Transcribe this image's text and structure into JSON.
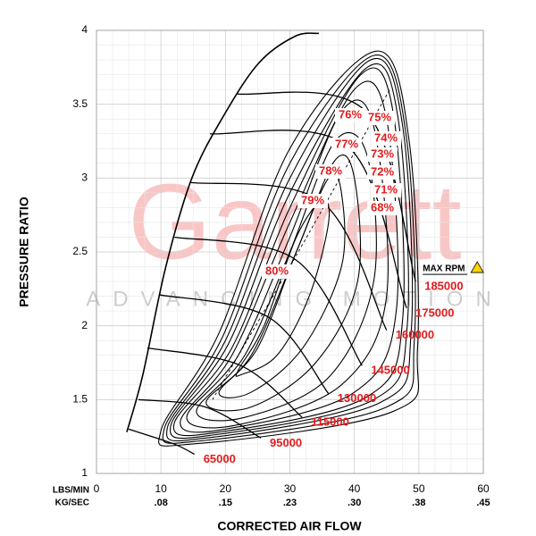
{
  "chart_data": {
    "type": "compressor-map",
    "xlabel": "CORRECTED AIR FLOW",
    "ylabel": "PRESSURE RATIO",
    "x_unit": "LBS/MIN",
    "x2_unit": "KG/SEC",
    "xlim": [
      0,
      60
    ],
    "xticks": [
      0,
      10,
      20,
      30,
      40,
      50,
      60
    ],
    "x2_labels": [
      ".08",
      ".15",
      ".23",
      ".30",
      ".38",
      ".45"
    ],
    "ylim": [
      1,
      4
    ],
    "yticks": [
      1,
      1.5,
      2,
      2.5,
      3,
      3.5,
      4
    ],
    "grid": true,
    "watermark": "Garrett",
    "watermark_sub": "ADVANCING MOTION",
    "max_rpm_label": "MAX RPM",
    "line_color": "#000000",
    "label_color": "#e41a1c",
    "surge_line": {
      "x": [
        4.7,
        7.2,
        10.7,
        14.8,
        19.7,
        25.2,
        30.8,
        34.5
      ],
      "values": [
        1.28,
        1.67,
        2.39,
        3.0,
        3.42,
        3.78,
        3.96,
        3.98
      ]
    },
    "speed_lines": [
      {
        "name": "65000",
        "x": [
          5,
          12,
          15.2
        ],
        "values": [
          1.3,
          1.2,
          1.13
        ]
      },
      {
        "name": "95000",
        "x": [
          6.5,
          16.9,
          25.5
        ],
        "values": [
          1.5,
          1.45,
          1.24
        ]
      },
      {
        "name": "115000",
        "x": [
          7.9,
          22.4,
          31.9
        ],
        "values": [
          1.85,
          1.73,
          1.38
        ]
      },
      {
        "name": "130000",
        "x": [
          9.7,
          26.6,
          36
        ],
        "values": [
          2.21,
          2.06,
          1.54
        ]
      },
      {
        "name": "145000",
        "x": [
          12.1,
          30.8,
          41.2
        ],
        "values": [
          2.6,
          2.45,
          1.73
        ]
      },
      {
        "name": "160000",
        "x": [
          14.6,
          34.9,
          45
        ],
        "values": [
          2.97,
          2.84,
          1.97
        ]
      },
      {
        "name": "175000",
        "x": [
          17.6,
          39.1,
          48.1
        ],
        "values": [
          3.3,
          3.21,
          2.12
        ]
      },
      {
        "name": "185000",
        "x": [
          21.8,
          41.8,
          49.5
        ],
        "values": [
          3.57,
          3.45,
          2.3
        ]
      }
    ],
    "islands": [
      {
        "name": "80%",
        "x": [
          22,
          26,
          31,
          35,
          36,
          33,
          28,
          22.5
        ],
        "values": [
          1.7,
          2.0,
          2.6,
          2.85,
          2.7,
          2.2,
          1.8,
          1.67
        ]
      },
      {
        "name": "79%",
        "x": [
          19,
          25,
          31,
          36,
          38,
          38,
          32,
          24
        ],
        "values": [
          1.55,
          1.85,
          2.5,
          3.0,
          2.9,
          2.4,
          1.85,
          1.55
        ]
      },
      {
        "name": "78%",
        "x": [
          17,
          24,
          31,
          37,
          40,
          40.5,
          34,
          24
        ],
        "values": [
          1.48,
          1.8,
          2.5,
          3.12,
          3.0,
          2.3,
          1.75,
          1.45
        ]
      },
      {
        "name": "77%",
        "x": [
          15.5,
          23,
          30,
          37,
          42,
          43,
          36,
          23
        ],
        "values": [
          1.42,
          1.8,
          2.5,
          3.25,
          3.15,
          2.3,
          1.65,
          1.38
        ]
      },
      {
        "name": "76%",
        "x": [
          14,
          22,
          30,
          38,
          43,
          45,
          38,
          22
        ],
        "values": [
          1.38,
          1.8,
          2.6,
          3.45,
          3.35,
          2.2,
          1.6,
          1.33
        ]
      },
      {
        "name": "75%",
        "x": [
          13,
          21,
          30,
          40,
          45,
          46.5,
          40,
          20
        ],
        "values": [
          1.35,
          1.8,
          2.7,
          3.6,
          3.4,
          2.1,
          1.55,
          1.3
        ]
      },
      {
        "name": "74%",
        "x": [
          12,
          21,
          30,
          41,
          46,
          47.5,
          42,
          19
        ],
        "values": [
          1.33,
          1.85,
          2.8,
          3.7,
          3.45,
          2.05,
          1.52,
          1.28
        ]
      },
      {
        "name": "73%",
        "x": [
          11.5,
          20.5,
          30,
          42,
          46.8,
          48.2,
          43,
          18
        ],
        "values": [
          1.32,
          1.88,
          2.9,
          3.75,
          3.4,
          2.0,
          1.5,
          1.26
        ]
      },
      {
        "name": "72%",
        "x": [
          11,
          20,
          30,
          42.5,
          47.5,
          48.8,
          44,
          17
        ],
        "values": [
          1.31,
          1.9,
          3.0,
          3.8,
          3.35,
          1.95,
          1.48,
          1.24
        ]
      },
      {
        "name": "71%",
        "x": [
          10.5,
          19.5,
          30,
          43,
          48,
          49.3,
          45,
          16
        ],
        "values": [
          1.3,
          1.92,
          3.1,
          3.83,
          3.3,
          1.9,
          1.45,
          1.22
        ]
      },
      {
        "name": "68%",
        "x": [
          10,
          19,
          30,
          43.5,
          48.5,
          49.8,
          46,
          15
        ],
        "values": [
          1.29,
          1.95,
          3.2,
          3.86,
          3.25,
          1.85,
          1.42,
          1.2
        ]
      }
    ],
    "efficiency_line": {
      "x": [
        18,
        30,
        45.5
      ],
      "values": [
        1.5,
        2.4,
        3.6
      ]
    }
  }
}
